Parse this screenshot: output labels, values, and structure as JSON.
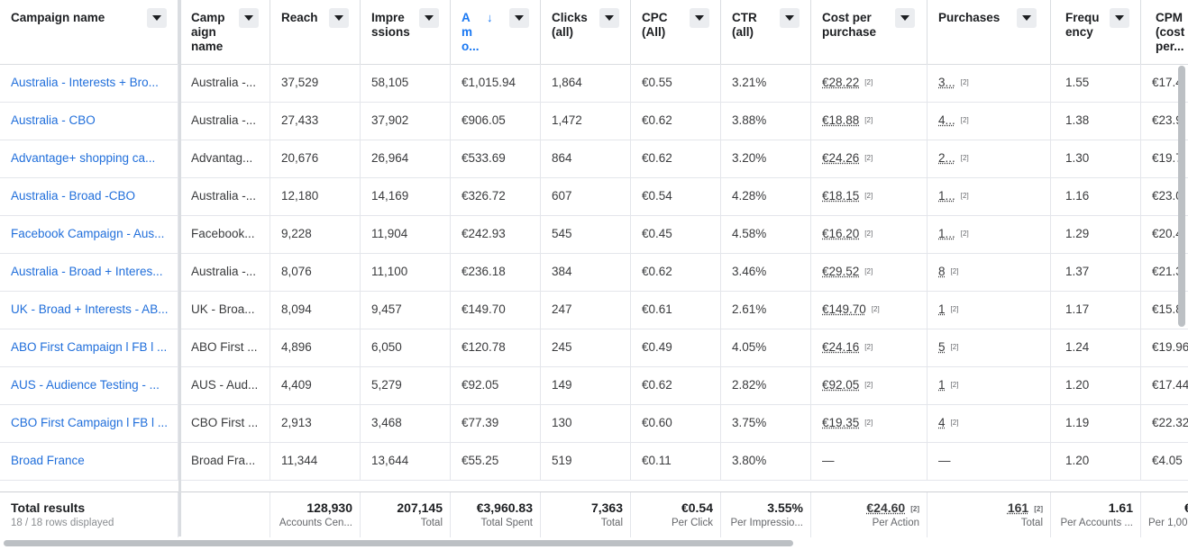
{
  "columns": [
    {
      "key": "campaign_name",
      "label": "Campaign name"
    },
    {
      "key": "campaign_name_2",
      "label": "Camp\naign\nname"
    },
    {
      "key": "reach",
      "label": "Reach"
    },
    {
      "key": "impressions",
      "label": "Impre\nssions"
    },
    {
      "key": "amount",
      "label": "A\nm\no..."
    },
    {
      "key": "clicks",
      "label": "Clicks\n(all)"
    },
    {
      "key": "cpc",
      "label": "CPC\n(All)"
    },
    {
      "key": "ctr",
      "label": "CTR\n(all)"
    },
    {
      "key": "cost_per_purchase",
      "label": "Cost per\npurchase"
    },
    {
      "key": "purchases",
      "label": "Purchases"
    },
    {
      "key": "frequency",
      "label": "Frequ\nency"
    },
    {
      "key": "cpm",
      "label": "CPM\n(cost\nper..."
    }
  ],
  "rows": [
    {
      "name": "Australia - Interests + Bro...",
      "name2": "Australia -...",
      "reach": "37,529",
      "impressions": "58,105",
      "amount": "€1,015.94",
      "clicks": "1,864",
      "cpc": "€0.55",
      "ctr": "3.21%",
      "cpp": "€28.22",
      "cpp_badge": "[2]",
      "purchases": "3...",
      "p_badge": "[2]",
      "frequency": "1.55",
      "cpm": "€17.4"
    },
    {
      "name": "Australia - CBO",
      "name2": "Australia -...",
      "reach": "27,433",
      "impressions": "37,902",
      "amount": "€906.05",
      "clicks": "1,472",
      "cpc": "€0.62",
      "ctr": "3.88%",
      "cpp": "€18.88",
      "cpp_badge": "[2]",
      "purchases": "4...",
      "p_badge": "[2]",
      "frequency": "1.38",
      "cpm": "€23.9"
    },
    {
      "name": "Advantage+ shopping ca...",
      "name2": "Advantag...",
      "reach": "20,676",
      "impressions": "26,964",
      "amount": "€533.69",
      "clicks": "864",
      "cpc": "€0.62",
      "ctr": "3.20%",
      "cpp": "€24.26",
      "cpp_badge": "[2]",
      "purchases": "2...",
      "p_badge": "[2]",
      "frequency": "1.30",
      "cpm": "€19.7"
    },
    {
      "name": "Australia - Broad -CBO",
      "name2": "Australia -...",
      "reach": "12,180",
      "impressions": "14,169",
      "amount": "€326.72",
      "clicks": "607",
      "cpc": "€0.54",
      "ctr": "4.28%",
      "cpp": "€18.15",
      "cpp_badge": "[2]",
      "purchases": "1...",
      "p_badge": "[2]",
      "frequency": "1.16",
      "cpm": "€23.0"
    },
    {
      "name": "Facebook Campaign - Aus...",
      "name2": "Facebook...",
      "reach": "9,228",
      "impressions": "11,904",
      "amount": "€242.93",
      "clicks": "545",
      "cpc": "€0.45",
      "ctr": "4.58%",
      "cpp": "€16.20",
      "cpp_badge": "[2]",
      "purchases": "1...",
      "p_badge": "[2]",
      "frequency": "1.29",
      "cpm": "€20.4"
    },
    {
      "name": "Australia - Broad + Interes...",
      "name2": "Australia -...",
      "reach": "8,076",
      "impressions": "11,100",
      "amount": "€236.18",
      "clicks": "384",
      "cpc": "€0.62",
      "ctr": "3.46%",
      "cpp": "€29.52",
      "cpp_badge": "[2]",
      "purchases": "8",
      "p_badge": "[2]",
      "frequency": "1.37",
      "cpm": "€21.3"
    },
    {
      "name": "UK - Broad + Interests - AB...",
      "name2": "UK - Broa...",
      "reach": "8,094",
      "impressions": "9,457",
      "amount": "€149.70",
      "clicks": "247",
      "cpc": "€0.61",
      "ctr": "2.61%",
      "cpp": "€149.70",
      "cpp_badge": "[2]",
      "purchases": "1",
      "p_badge": "[2]",
      "frequency": "1.17",
      "cpm": "€15.8"
    },
    {
      "name": "ABO First Campaign l FB l ...",
      "name2": "ABO First ...",
      "reach": "4,896",
      "impressions": "6,050",
      "amount": "€120.78",
      "clicks": "245",
      "cpc": "€0.49",
      "ctr": "4.05%",
      "cpp": "€24.16",
      "cpp_badge": "[2]",
      "purchases": "5",
      "p_badge": "[2]",
      "frequency": "1.24",
      "cpm": "€19.96"
    },
    {
      "name": "AUS - Audience Testing - ...",
      "name2": "AUS - Aud...",
      "reach": "4,409",
      "impressions": "5,279",
      "amount": "€92.05",
      "clicks": "149",
      "cpc": "€0.62",
      "ctr": "2.82%",
      "cpp": "€92.05",
      "cpp_badge": "[2]",
      "purchases": "1",
      "p_badge": "[2]",
      "frequency": "1.20",
      "cpm": "€17.44"
    },
    {
      "name": "CBO First Campaign l FB l ...",
      "name2": "CBO First ...",
      "reach": "2,913",
      "impressions": "3,468",
      "amount": "€77.39",
      "clicks": "130",
      "cpc": "€0.60",
      "ctr": "3.75%",
      "cpp": "€19.35",
      "cpp_badge": "[2]",
      "purchases": "4",
      "p_badge": "[2]",
      "frequency": "1.19",
      "cpm": "€22.32"
    },
    {
      "name": "Broad France",
      "name2": "Broad Fra...",
      "reach": "11,344",
      "impressions": "13,644",
      "amount": "€55.25",
      "clicks": "519",
      "cpc": "€0.11",
      "ctr": "3.80%",
      "cpp": "—",
      "cpp_badge": "",
      "purchases": "—",
      "p_badge": "",
      "frequency": "1.20",
      "cpm": "€4.05"
    }
  ],
  "totals": {
    "title": "Total results",
    "subtitle": "18 / 18 rows displayed",
    "reach": "128,930",
    "reach_sub": "Accounts Cen...",
    "impressions": "207,145",
    "impressions_sub": "Total",
    "amount": "€3,960.83",
    "amount_sub": "Total Spent",
    "clicks": "7,363",
    "clicks_sub": "Total",
    "cpc": "€0.54",
    "cpc_sub": "Per Click",
    "ctr": "3.55%",
    "ctr_sub": "Per Impressio...",
    "cpp": "€24.60",
    "cpp_badge": "[2]",
    "cpp_sub": "Per Action",
    "purchases": "161",
    "p_badge": "[2]",
    "purchases_sub": "Total",
    "frequency": "1.61",
    "frequency_sub": "Per Accounts ...",
    "cpm": "€",
    "cpm_sub": "Per 1,00"
  }
}
